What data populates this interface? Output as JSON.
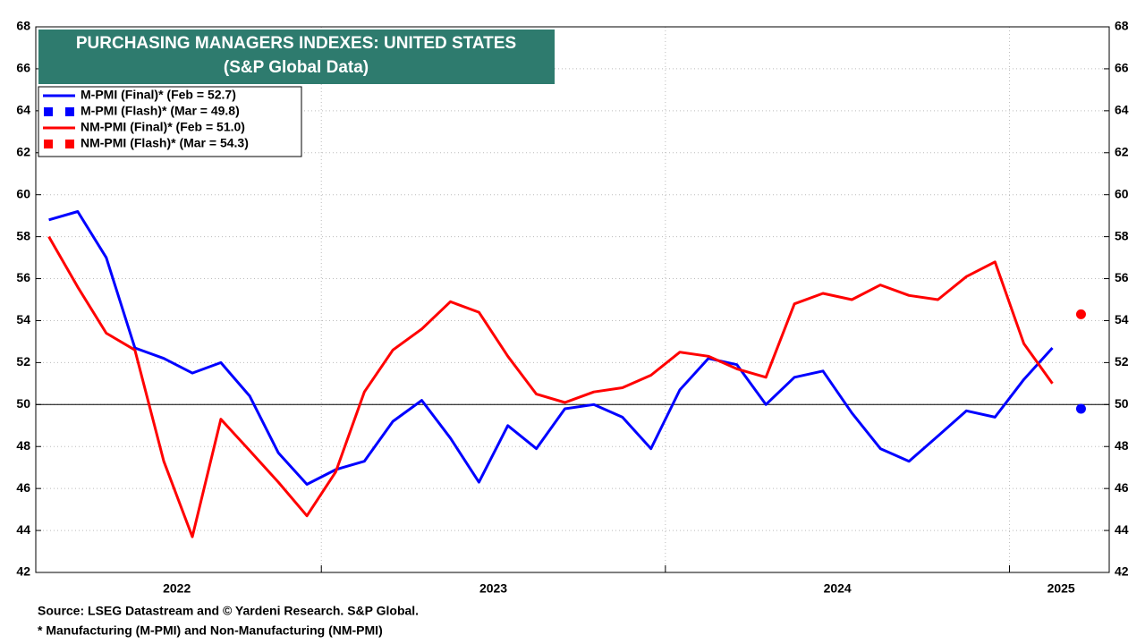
{
  "chart_data": {
    "type": "line",
    "title": "PURCHASING MANAGERS INDEXES: UNITED STATES",
    "subtitle": "(S&P Global Data)",
    "source": "Source: LSEG Datastream and © Yardeni Research. S&P Global.",
    "note": "* Manufacturing (M-PMI) and Non-Manufacturing (NM-PMI)",
    "x": [
      2022.208,
      2022.292,
      2022.375,
      2022.458,
      2022.542,
      2022.625,
      2022.708,
      2022.792,
      2022.875,
      2022.958,
      2023.042,
      2023.125,
      2023.208,
      2023.292,
      2023.375,
      2023.458,
      2023.542,
      2023.625,
      2023.708,
      2023.792,
      2023.875,
      2023.958,
      2024.042,
      2024.125,
      2024.208,
      2024.292,
      2024.375,
      2024.458,
      2024.542,
      2024.625,
      2024.708,
      2024.792,
      2024.875,
      2024.958,
      2025.042,
      2025.125
    ],
    "series": [
      {
        "name": "M-PMI (Final)* (Feb = 52.7)",
        "color": "#0000ff",
        "style": "line",
        "values": [
          58.8,
          59.2,
          57.0,
          52.7,
          52.2,
          51.5,
          52.0,
          50.4,
          47.7,
          46.2,
          46.9,
          47.3,
          49.2,
          50.2,
          48.4,
          46.3,
          49.0,
          47.9,
          49.8,
          50.0,
          49.4,
          47.9,
          50.7,
          52.2,
          51.9,
          50.0,
          51.3,
          51.6,
          49.6,
          47.9,
          47.3,
          48.5,
          49.7,
          49.4,
          51.2,
          52.7
        ]
      },
      {
        "name": "M-PMI (Flash)* (Mar = 49.8)",
        "color": "#0000ff",
        "style": "marker",
        "x": [
          2025.208
        ],
        "values": [
          49.8
        ]
      },
      {
        "name": "NM-PMI (Final)* (Feb = 51.0)",
        "color": "#ff0000",
        "style": "line",
        "values": [
          58.0,
          55.6,
          53.4,
          52.6,
          47.3,
          43.7,
          49.3,
          47.8,
          46.3,
          44.7,
          46.8,
          50.6,
          52.6,
          53.6,
          54.9,
          54.4,
          52.3,
          50.5,
          50.1,
          50.6,
          50.8,
          51.4,
          52.5,
          52.3,
          51.7,
          51.3,
          54.8,
          55.3,
          55.0,
          55.7,
          55.2,
          55.0,
          56.1,
          56.8,
          52.9,
          51.0
        ]
      },
      {
        "name": "NM-PMI (Flash)* (Mar = 54.3)",
        "color": "#ff0000",
        "style": "marker",
        "x": [
          2025.208
        ],
        "values": [
          54.3
        ]
      }
    ],
    "xlim": [
      2022.17,
      2025.29
    ],
    "xticks": [
      {
        "value": 2022.58,
        "label": "2022"
      },
      {
        "value": 2023.5,
        "label": "2023"
      },
      {
        "value": 2024.5,
        "label": "2024"
      },
      {
        "value": 2025.15,
        "label": "2025"
      }
    ],
    "xgrid": [
      2023,
      2024,
      2025
    ],
    "ylim": [
      42,
      68
    ],
    "yticks": [
      42,
      44,
      46,
      48,
      50,
      52,
      54,
      56,
      58,
      60,
      62,
      64,
      66,
      68
    ],
    "reference_line": 50,
    "grid": true,
    "legend": "upper left"
  }
}
